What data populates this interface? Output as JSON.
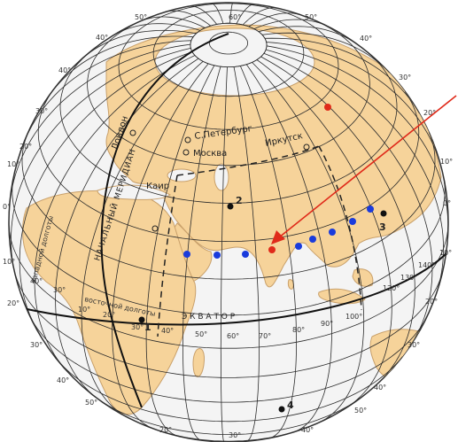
{
  "colors": {
    "ocean": "#f4f4f4",
    "land": "#f6d39a",
    "land_edge": "#c9a06a",
    "grid": "#2b2b2b",
    "blue_dots": "#1a3bdc",
    "red": "#e02a1a",
    "point": "#111111"
  },
  "labels": {
    "prime_meridian": "НАЧАЛЬНЫЙ МЕРИДИАН",
    "equator_east": "Э К В А Т О Р",
    "west_longitude": "западной долготы",
    "east_longitude": "восточной долготы"
  },
  "cities": [
    {
      "name": "Лондон"
    },
    {
      "name": "С.Петербург"
    },
    {
      "name": "Москва"
    },
    {
      "name": "Иркутск"
    },
    {
      "name": "Каир"
    }
  ],
  "points": [
    "1",
    "2",
    "3",
    "4"
  ],
  "degree_labels": {
    "top": [
      "50°",
      "60°",
      "40°",
      "50°"
    ],
    "left_lat": [
      "40°",
      "30°",
      "20°",
      "10°",
      "0°",
      "10°",
      "20°",
      "30°",
      "40°",
      "50°"
    ],
    "right_lat": [
      "40°",
      "30°",
      "20°",
      "10°",
      "0°",
      "10°",
      "20°",
      "30°",
      "40°"
    ],
    "equator_lon": [
      "30°",
      "40°",
      "50°",
      "60°",
      "70°",
      "80°",
      "90°",
      "100°"
    ],
    "right_equator": [
      "120°",
      "130°",
      "140°"
    ],
    "left_equator": [
      "10°",
      "20°",
      "30°",
      "40°"
    ],
    "bottom": [
      "20°",
      "30°",
      "40°",
      "50°"
    ]
  },
  "markers": {
    "blue_dot_count": 12,
    "red_dots": 2,
    "arrow": "red arrow pointing to the red dot"
  }
}
